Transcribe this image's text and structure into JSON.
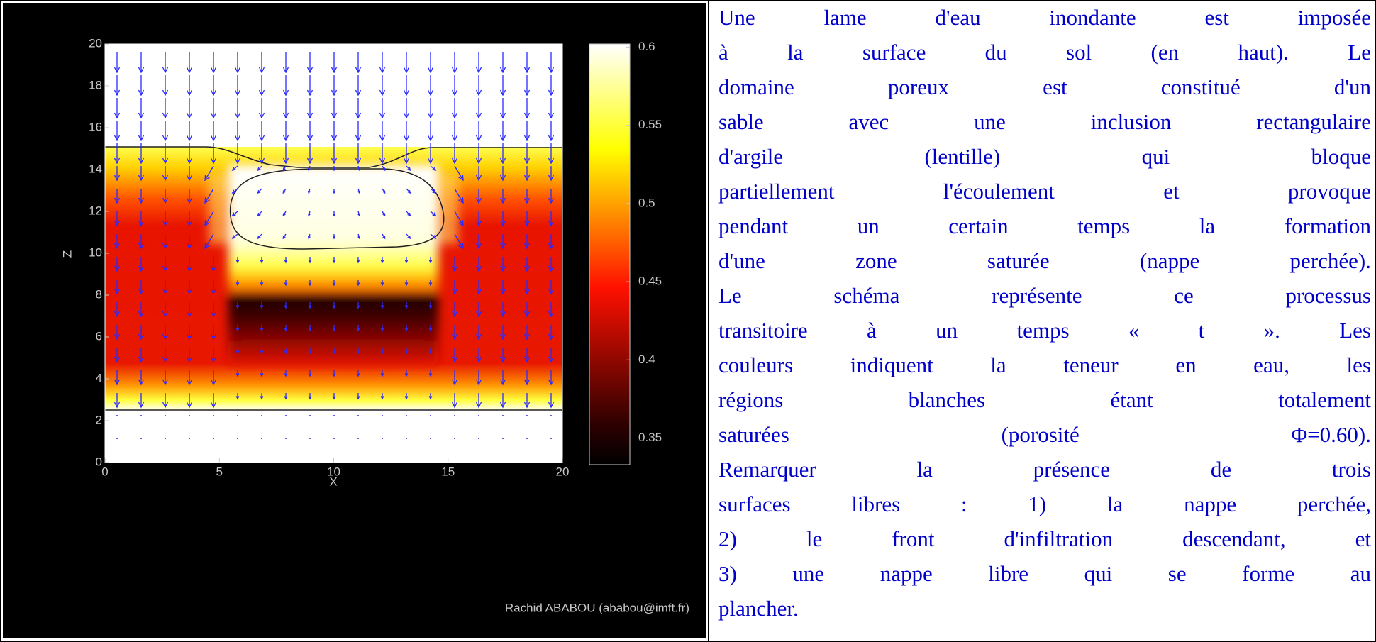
{
  "figure": {
    "xlabel": "X",
    "ylabel": "Z",
    "xlim": [
      0,
      20
    ],
    "ylim": [
      0,
      20
    ],
    "xticks": [
      0,
      5,
      10,
      15,
      20
    ],
    "yticks": [
      0,
      2,
      4,
      6,
      8,
      10,
      12,
      14,
      16,
      18,
      20
    ],
    "clim": [
      0.333,
      0.602
    ],
    "cticks": [
      0.35,
      0.4,
      0.45,
      0.5,
      0.55,
      0.6
    ],
    "credit": "Rachid ABABOU (ababou@imft.fr)"
  },
  "text": {
    "lines": [
      "Une lame d'eau inondante est imposée",
      "à la surface du sol (en haut). Le",
      "domaine poreux est constitué d'un",
      "sable avec une inclusion rectangulaire",
      "d'argile (lentille) qui bloque",
      "partiellement l'écoulement et provoque",
      "pendant un certain temps la formation",
      "d'une zone saturée (nappe perchée).",
      "Le schéma représente ce processus",
      "transitoire à un temps « t ». Les",
      "couleurs indiquent la teneur en eau, les",
      "régions blanches étant totalement",
      "saturées (porosité Φ=0.60).",
      "Remarquer la présence de trois",
      "surfaces libres : 1) la nappe perchée,",
      "2) le front d'infiltration descendant, et",
      "3) une nappe libre qui se forme au",
      "plancher."
    ]
  }
}
